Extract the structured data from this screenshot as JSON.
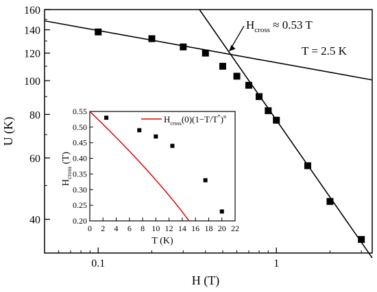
{
  "chart_data": [
    {
      "type": "scatter",
      "role": "main",
      "xlabel": "H (T)",
      "ylabel": "U (K)",
      "xscale": "log",
      "yscale": "log",
      "xlim": [
        0.05,
        3.45
      ],
      "ylim": [
        32,
        160
      ],
      "x_ticks": [
        0.1,
        1
      ],
      "x_tick_labels": [
        "0.1",
        "1"
      ],
      "y_ticks": [
        40,
        60,
        80,
        100,
        120,
        140,
        160
      ],
      "y_tick_labels": [
        "40",
        "60",
        "80",
        "100",
        "120",
        "140",
        "160"
      ],
      "series": [
        {
          "marker": "square",
          "x": [
            0.1,
            0.2,
            0.3,
            0.4,
            0.5,
            0.6,
            0.7,
            0.8,
            0.9,
            1.0,
            1.5,
            2.0,
            3.0
          ],
          "y": [
            138,
            132,
            125,
            120,
            110,
            103,
            97,
            90,
            82,
            77,
            57,
            45,
            35
          ]
        }
      ],
      "fit_lines": [
        {
          "x": [
            0.05,
            3.45
          ],
          "y": [
            148.5,
            100.5
          ]
        },
        {
          "x": [
            0.37,
            3.45
          ],
          "y": [
            160,
            31
          ]
        }
      ],
      "annotations": {
        "crossing_label": "H",
        "crossing_sub": "cross",
        "crossing_value": " ≈ 0.53 T",
        "crossing_point": [
          0.53,
          120
        ],
        "temperature": "T = 2.5 K"
      },
      "grid": false,
      "line_color": "#000000",
      "marker_color": "#000000"
    },
    {
      "type": "scatter",
      "role": "inset",
      "xlabel": "T (K)",
      "ylabel_main": "H",
      "ylabel_sub": "cross",
      "ylabel_tail": " (T)",
      "xlim": [
        0,
        22
      ],
      "ylim": [
        0.2,
        0.55
      ],
      "x_ticks": [
        0,
        2,
        4,
        6,
        8,
        10,
        12,
        14,
        16,
        18,
        20,
        22
      ],
      "x_tick_labels": [
        "0",
        "2",
        "4",
        "6",
        "8",
        "10",
        "12",
        "14",
        "16",
        "18",
        "20",
        "22"
      ],
      "y_ticks": [
        0.2,
        0.25,
        0.3,
        0.35,
        0.4,
        0.45,
        0.5,
        0.55
      ],
      "y_tick_labels": [
        "0.20",
        "0.25",
        "0.30",
        "0.35",
        "0.40",
        "0.45",
        "0.50",
        "0.55"
      ],
      "series": [
        {
          "marker": "square",
          "x": [
            2.5,
            7.5,
            10,
            12.5,
            17.5,
            20
          ],
          "y": [
            0.53,
            0.49,
            0.47,
            0.44,
            0.33,
            0.23
          ]
        }
      ],
      "fit": {
        "H0": 0.55,
        "Tstar": 20.3,
        "n": 0.75,
        "color": "#e00000"
      },
      "legend": {
        "position": "top-right",
        "text_a": "H",
        "text_sub": "cross",
        "text_b": "(0)(1−T/T",
        "text_sup1": "*",
        "text_c": ")",
        "text_sup2": "n"
      },
      "grid": false
    }
  ]
}
